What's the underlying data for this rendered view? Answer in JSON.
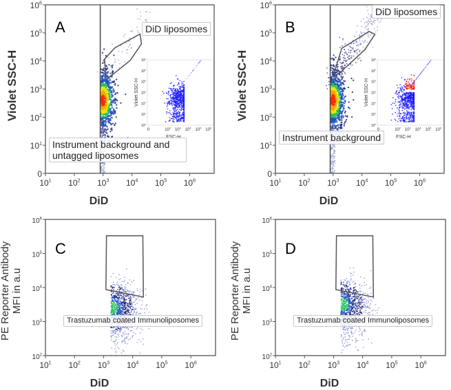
{
  "chart_data": [
    {
      "panel": "A",
      "type": "scatter",
      "subtype": "flow-cytometry density",
      "xlabel": "DiD",
      "ylabel": "Violet SSC-H",
      "xticks": [
        "10^1",
        "10^2",
        "10^3",
        "10^4",
        "10^5",
        "10^6"
      ],
      "yticks": [
        "0",
        "10^1",
        "10^2",
        "10^3",
        "10^4",
        "10^5",
        "10^6"
      ],
      "xlim_log10": [
        1,
        6.85
      ],
      "ylim_log10": [
        0,
        6
      ],
      "vertical_gate_log10": 2.9,
      "gate_polygon_log10": [
        [
          3.05,
          4.07
        ],
        [
          3.41,
          4.47
        ],
        [
          4.28,
          4.96
        ],
        [
          4.33,
          4.61
        ],
        [
          3.94,
          4.02
        ],
        [
          3.1,
          3.33
        ]
      ],
      "annotations": [
        "DiD liposomes",
        "Instrument background and untagged liposomes"
      ],
      "population_center_log10": [
        3.0,
        2.6
      ],
      "inset": {
        "xlabel": "FSC-H",
        "ylabel": "Violet SSC-H",
        "xticks": [
          "0",
          "10^2",
          "10^3",
          "10^4",
          "10^5",
          "10^6"
        ],
        "yticks": [
          "10^0",
          "10^1",
          "10^2",
          "10^3",
          "10^4",
          "10^5",
          "10^6"
        ],
        "gated_highlight": false
      }
    },
    {
      "panel": "B",
      "type": "scatter",
      "subtype": "flow-cytometry density",
      "xlabel": "DiD",
      "ylabel": "Violet SSC-H",
      "xticks": [
        "10^1",
        "10^2",
        "10^3",
        "10^4",
        "10^5",
        "10^6"
      ],
      "yticks": [
        "0",
        "10^1",
        "10^2",
        "10^3",
        "10^4",
        "10^5",
        "10^6"
      ],
      "xlim_log10": [
        1,
        6.85
      ],
      "ylim_log10": [
        0,
        6
      ],
      "vertical_gate_log10": 2.9,
      "gate_polygon_log10": [
        [
          3.0,
          3.45
        ],
        [
          3.3,
          4.45
        ],
        [
          4.25,
          5.05
        ],
        [
          4.45,
          4.95
        ],
        [
          4.1,
          4.4
        ],
        [
          3.2,
          3.55
        ]
      ],
      "annotations": [
        "DiD liposomes",
        "Instrument background"
      ],
      "population_center_log10": [
        3.0,
        2.6
      ],
      "inset": {
        "xlabel": "FSC-H",
        "ylabel": "Violet SSC-H",
        "xticks": [
          "0",
          "10^2",
          "10^3",
          "10^4",
          "10^5",
          "10^6"
        ],
        "yticks": [
          "10^0",
          "10^1",
          "10^2",
          "10^3",
          "10^4",
          "10^5",
          "10^6"
        ],
        "gated_highlight": true
      }
    },
    {
      "panel": "C",
      "type": "scatter",
      "subtype": "flow-cytometry density",
      "xlabel": "DiD",
      "ylabel": "PE Reporter Antibody",
      "ylabel2": "MFI in a.u",
      "xticks": [
        "10^1",
        "10^2",
        "10^3",
        "10^4",
        "10^5",
        "10^6"
      ],
      "yticks": [
        "10^2",
        "10^3",
        "10^4",
        "10^5",
        "10^6"
      ],
      "xlim_log10": [
        1,
        6.85
      ],
      "ylim_log10": [
        2,
        6
      ],
      "gate_polygon_log10": [
        [
          3.1,
          5.52
        ],
        [
          4.35,
          5.52
        ],
        [
          4.37,
          3.72
        ],
        [
          3.08,
          3.94
        ]
      ],
      "annotations": [
        "Trastuzumab coated Immunoliposomes"
      ],
      "population_center_log10": [
        3.4,
        3.4
      ]
    },
    {
      "panel": "D",
      "type": "scatter",
      "subtype": "flow-cytometry density",
      "xlabel": "DiD",
      "ylabel": "PE Reporter Antibody",
      "ylabel2": "MFI in a.u",
      "xticks": [
        "10^1",
        "10^2",
        "10^3",
        "10^4",
        "10^5",
        "10^6"
      ],
      "yticks": [
        "10^2",
        "10^3",
        "10^4",
        "10^5",
        "10^6"
      ],
      "xlim_log10": [
        1,
        6.85
      ],
      "ylim_log10": [
        2,
        6
      ],
      "gate_polygon_log10": [
        [
          3.1,
          5.52
        ],
        [
          4.35,
          5.52
        ],
        [
          4.37,
          3.72
        ],
        [
          3.08,
          3.94
        ]
      ],
      "annotations": [
        "Trastuzumab coated Immunoliposomes"
      ],
      "population_center_log10": [
        3.4,
        3.5
      ]
    }
  ],
  "colors": {
    "frame": "#555555",
    "gate": "#555555",
    "density": [
      "#ff2a00",
      "#ffa500",
      "#e6e600",
      "#22c05a",
      "#1f4fbf",
      "#1a237e",
      "#8c93d6"
    ],
    "inset_dots": "#1a1aff",
    "inset_gated": "#ff0000"
  }
}
